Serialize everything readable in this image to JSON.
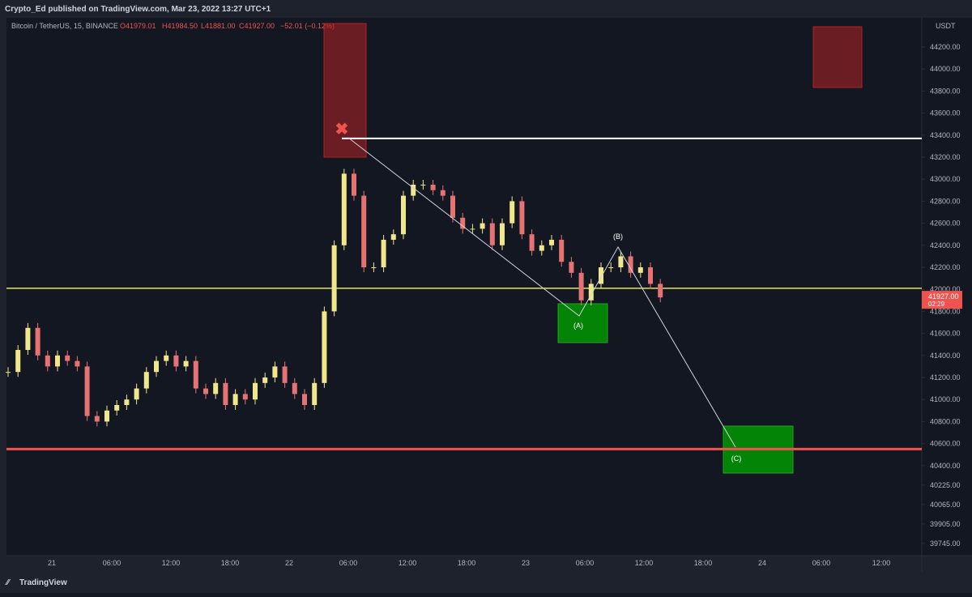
{
  "header": {
    "publisher": "Crypto_Ed published on TradingView.com, Mar 23, 2022 13:27 UTC+1"
  },
  "legend": {
    "symbol": "Bitcoin / TetherUS, 15, BINANCE",
    "open": "O41979.01",
    "high": "H41984.50",
    "low": "L41881.00",
    "close": "C41927.00",
    "change": "−52.01 (−0.12%)"
  },
  "price_axis": {
    "currency": "USDT",
    "last_price": "41927.00",
    "countdown": "02:29",
    "ticks": [
      {
        "value": 44200,
        "label": "44200.00"
      },
      {
        "value": 44000,
        "label": "44000.00"
      },
      {
        "value": 43800,
        "label": "43800.00"
      },
      {
        "value": 43600,
        "label": "43600.00"
      },
      {
        "value": 43400,
        "label": "43400.00"
      },
      {
        "value": 43200,
        "label": "43200.00"
      },
      {
        "value": 43000,
        "label": "43000.00"
      },
      {
        "value": 42800,
        "label": "42800.00"
      },
      {
        "value": 42600,
        "label": "42600.00"
      },
      {
        "value": 42400,
        "label": "42400.00"
      },
      {
        "value": 42200,
        "label": "42200.00"
      },
      {
        "value": 42000,
        "label": "42000.00"
      },
      {
        "value": 41800,
        "label": "41800.00"
      },
      {
        "value": 41600,
        "label": "41600.00"
      },
      {
        "value": 41400,
        "label": "41400.00"
      },
      {
        "value": 41200,
        "label": "41200.00"
      },
      {
        "value": 41000,
        "label": "41000.00"
      },
      {
        "value": 40800,
        "label": "40800.00"
      },
      {
        "value": 40600,
        "label": "40600.00"
      },
      {
        "value": 40400,
        "label": "40400.00"
      },
      {
        "value": 40225,
        "label": "40225.00"
      },
      {
        "value": 40065,
        "label": "40065.00"
      },
      {
        "value": 39905,
        "label": "39905.00"
      },
      {
        "value": 39745,
        "label": "39745.00"
      }
    ]
  },
  "time_axis": {
    "labels": [
      "21",
      "06:00",
      "12:00",
      "18:00",
      "22",
      "06:00",
      "12:00",
      "18:00",
      "23",
      "06:00",
      "12:00",
      "18:00",
      "24",
      "06:00",
      "12:00"
    ]
  },
  "candles": {
    "closes": [
      41250,
      41450,
      41650,
      41400,
      41300,
      41400,
      41350,
      41300,
      40850,
      40800,
      40900,
      40950,
      41000,
      41100,
      41250,
      41350,
      41400,
      41300,
      41350,
      41100,
      41050,
      41150,
      40950,
      41050,
      41000,
      41150,
      41200,
      41300,
      41150,
      41050,
      40950,
      41150,
      41800,
      42400,
      43050,
      42850,
      42200,
      42200,
      42450,
      42500,
      42850,
      42950,
      42950,
      42900,
      42850,
      42650,
      42550,
      42550,
      42600,
      42400,
      42600,
      42800,
      42500,
      42350,
      42400,
      42450,
      42250,
      42150,
      41900,
      42050,
      42200,
      42200,
      42300,
      42150,
      42200,
      42050,
      41927
    ],
    "up_color": "#f0e68c",
    "down_color": "#e57373"
  },
  "levels": {
    "resistance": 43370,
    "pivot": 42010,
    "support": 40550
  },
  "waves": {
    "a": "(A)",
    "b": "(B)",
    "c": "(C)"
  },
  "footer": {
    "brand": "TradingView"
  }
}
